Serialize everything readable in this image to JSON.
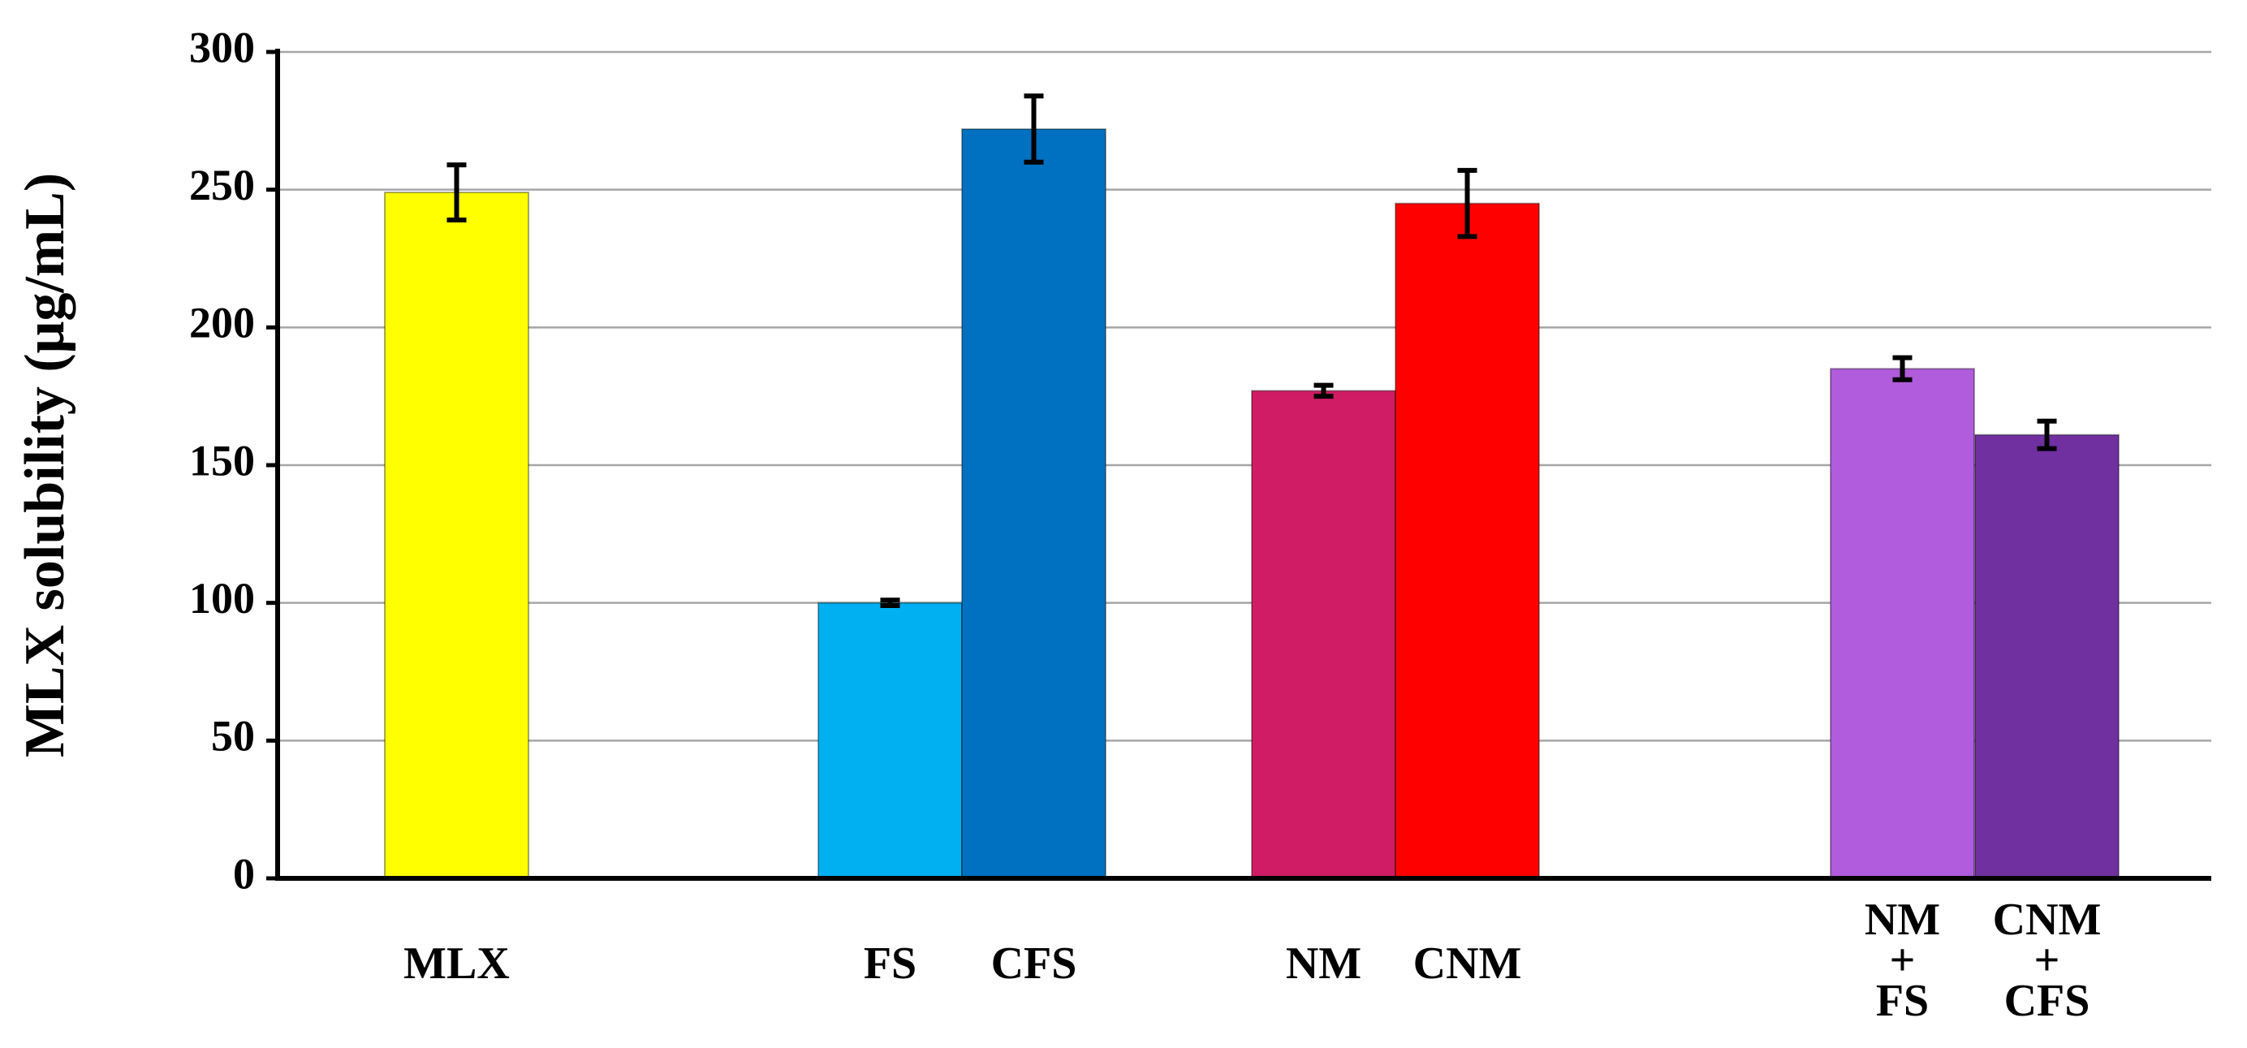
{
  "chart_data": {
    "type": "bar",
    "y_label": "MLX solubility (μg/mL)",
    "categories": [
      "MLX",
      "FS",
      "CFS",
      "NM",
      "CNM",
      "NM\n+\nFS",
      "CNM\n+\nCFS"
    ],
    "values": [
      249,
      100,
      272,
      177,
      245,
      185,
      161
    ],
    "errors": [
      10,
      1,
      12,
      2,
      12,
      4,
      5
    ],
    "colors": [
      "#ffff00",
      "#00b0f0",
      "#0070c0",
      "#d01c64",
      "#ff0000",
      "#b05cdc",
      "#7030a0"
    ],
    "ylim": [
      0,
      300
    ],
    "yticks": [
      0,
      50,
      100,
      150,
      200,
      250,
      300
    ],
    "grid": true
  }
}
